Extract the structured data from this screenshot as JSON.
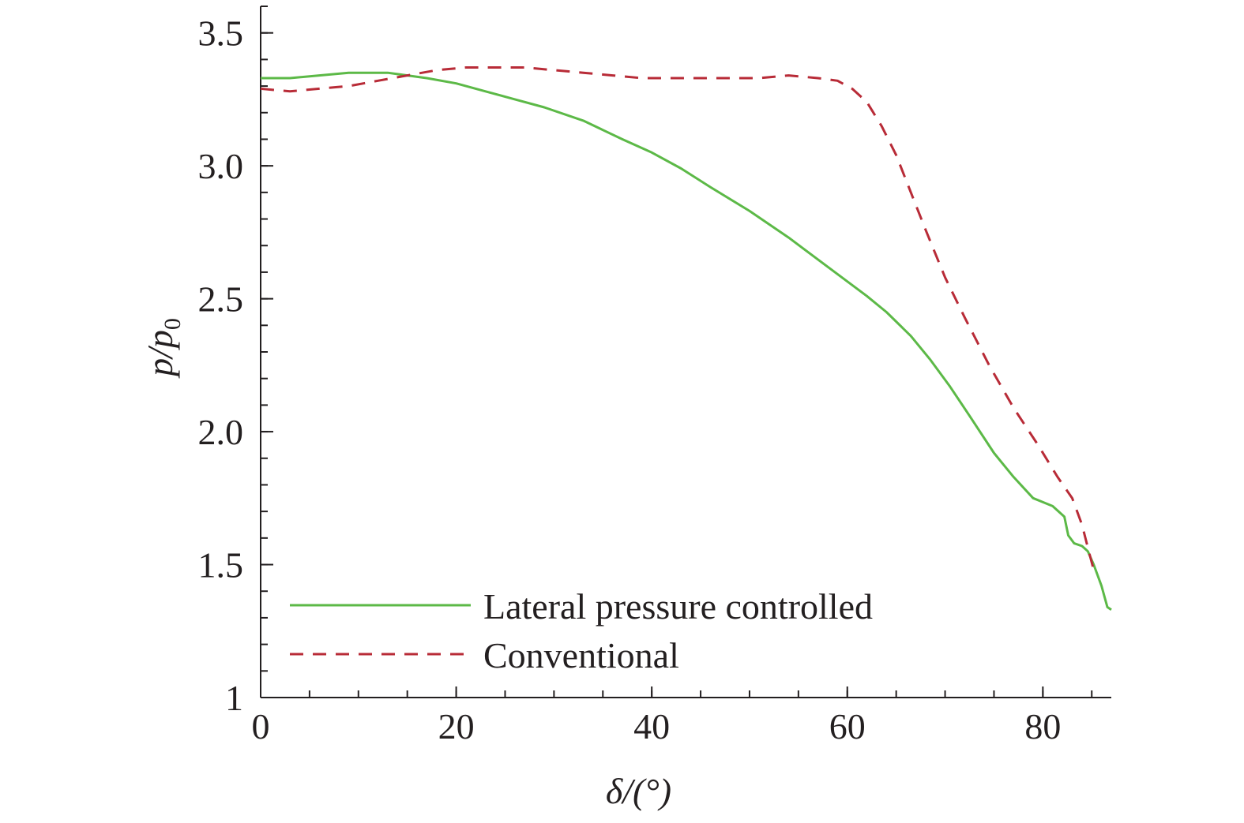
{
  "chart_data": {
    "type": "line",
    "title": "",
    "xlabel": "δ/(°)",
    "ylabel": "p/p0",
    "xlim": [
      0,
      87
    ],
    "ylim": [
      1,
      3.6
    ],
    "x_ticks": [
      0,
      20,
      40,
      60,
      80
    ],
    "x_tick_labels": [
      "0",
      "20",
      "40",
      "60",
      "80"
    ],
    "x_minor_step": 5,
    "y_ticks": [
      1,
      1.5,
      2,
      2.5,
      3,
      3.5
    ],
    "y_tick_labels": [
      "1",
      "1.5",
      "2.0",
      "2.5",
      "3.0",
      "3.5"
    ],
    "y_minor_step": 0.1,
    "grid": false,
    "legend_position": "bottom-left",
    "series": [
      {
        "name": "Lateral pressure controlled",
        "color": "#5cb947",
        "dash": "solid",
        "x": [
          0,
          3,
          6,
          9,
          11,
          13,
          15,
          17,
          20,
          23,
          26,
          29,
          33,
          37,
          40,
          43,
          46,
          50,
          54,
          58,
          62,
          64,
          66.5,
          68.5,
          70.5,
          72.5,
          75,
          77,
          79,
          81,
          82.2,
          82.6,
          83.2,
          84,
          84.6,
          85.2,
          86,
          86.6,
          87
        ],
        "values": [
          3.33,
          3.33,
          3.34,
          3.35,
          3.35,
          3.35,
          3.34,
          3.33,
          3.31,
          3.28,
          3.25,
          3.22,
          3.17,
          3.1,
          3.05,
          2.99,
          2.92,
          2.83,
          2.73,
          2.62,
          2.51,
          2.45,
          2.36,
          2.27,
          2.17,
          2.06,
          1.92,
          1.83,
          1.75,
          1.72,
          1.68,
          1.61,
          1.58,
          1.57,
          1.55,
          1.5,
          1.42,
          1.34,
          1.33
        ]
      },
      {
        "name": "Conventional",
        "color": "#b82b37",
        "dash": "dashed",
        "x": [
          0,
          3,
          6,
          9,
          12,
          15,
          18,
          21,
          24,
          27,
          30,
          33,
          36,
          39,
          42,
          45,
          48,
          51,
          54,
          57,
          59,
          60.5,
          62,
          63.5,
          65,
          66.5,
          68,
          70,
          72,
          74.5,
          77,
          79.5,
          81.5,
          83,
          84,
          84.7,
          85.2
        ],
        "values": [
          3.29,
          3.28,
          3.29,
          3.3,
          3.32,
          3.34,
          3.36,
          3.37,
          3.37,
          3.37,
          3.36,
          3.35,
          3.34,
          3.33,
          3.33,
          3.33,
          3.33,
          3.33,
          3.34,
          3.33,
          3.32,
          3.29,
          3.24,
          3.15,
          3.04,
          2.9,
          2.76,
          2.58,
          2.43,
          2.25,
          2.09,
          1.95,
          1.83,
          1.75,
          1.65,
          1.55,
          1.48
        ]
      }
    ]
  }
}
